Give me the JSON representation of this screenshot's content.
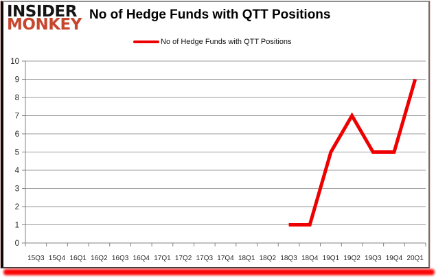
{
  "logo": {
    "line1": "INSIDER",
    "line2": "MONKEY"
  },
  "header": {
    "title": "No of Hedge Funds with QTT Positions"
  },
  "legend": {
    "label": "No of Hedge Funds with QTT Positions",
    "marker_color": "#ee0000"
  },
  "colors": {
    "series_red": "#ee0000",
    "logo_red": "#c7472e",
    "gridline": "#999999",
    "axis": "#808080",
    "tick_label": "#262626",
    "bottom_bar": "#fa0606"
  },
  "chart_data": {
    "type": "line",
    "title": "No of Hedge Funds with QTT Positions",
    "categories": [
      "15Q3",
      "15Q4",
      "16Q1",
      "16Q2",
      "16Q3",
      "16Q4",
      "17Q1",
      "17Q2",
      "17Q3",
      "17Q4",
      "18Q1",
      "18Q2",
      "18Q3",
      "18Q4",
      "19Q1",
      "19Q2",
      "19Q3",
      "19Q4",
      "20Q1"
    ],
    "series": [
      {
        "name": "No of Hedge Funds with QTT Positions",
        "color": "#ee0000",
        "values": [
          null,
          null,
          null,
          null,
          null,
          null,
          null,
          null,
          null,
          null,
          null,
          null,
          1,
          1,
          5,
          7,
          5,
          5,
          9
        ]
      }
    ],
    "xlabel": "",
    "ylabel": "",
    "ylim": [
      0,
      10
    ],
    "ytick_step": 1,
    "grid": true,
    "legend_position": "top-center"
  }
}
